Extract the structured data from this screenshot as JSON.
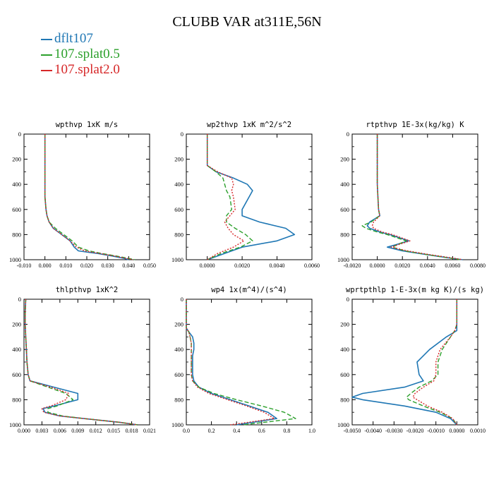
{
  "title": "CLUBB VAR at311E,56N",
  "legend": [
    {
      "label": "dflt107",
      "color": "#1f77b4"
    },
    {
      "label": "107.splat0.5",
      "color": "#2ca02c"
    },
    {
      "label": "107.splat2.0",
      "color": "#d62728"
    }
  ],
  "chart_data": [
    {
      "type": "line",
      "title": "wpthvp   1xK  m/s",
      "xlim": [
        -0.01,
        0.05
      ],
      "ylim": [
        1000,
        0
      ],
      "xticks": [
        "-0.010",
        "0.000",
        "0.010",
        "0.020",
        "0.030",
        "0.040",
        "0.050"
      ],
      "yticks": [
        "0",
        "200",
        "400",
        "600",
        "800",
        "1000"
      ],
      "y": [
        0,
        100,
        200,
        300,
        400,
        500,
        600,
        650,
        700,
        750,
        800,
        850,
        900,
        930,
        950,
        970,
        990,
        1000
      ],
      "series": [
        {
          "name": "dflt107",
          "values": [
            0.0,
            0.0,
            0.0,
            0.0,
            0.0,
            0.0,
            0.0005,
            0.001,
            0.002,
            0.004,
            0.008,
            0.012,
            0.014,
            0.016,
            0.025,
            0.032,
            0.038,
            0.04
          ]
        },
        {
          "name": "107.splat0.5",
          "values": [
            0.0,
            0.0,
            0.0,
            0.0,
            0.0,
            0.0,
            0.0005,
            0.001,
            0.002,
            0.005,
            0.009,
            0.013,
            0.016,
            0.021,
            0.027,
            0.034,
            0.04,
            0.043
          ]
        },
        {
          "name": "107.splat2.0",
          "values": [
            0.0,
            0.0,
            0.0,
            0.0,
            0.0,
            0.0,
            0.0005,
            0.001,
            0.002,
            0.004,
            0.008,
            0.012,
            0.015,
            0.019,
            0.026,
            0.033,
            0.039,
            0.042
          ]
        }
      ]
    },
    {
      "type": "line",
      "title": "wp2thvp   1xK  m^2/s^2",
      "xlim": [
        -0.0012,
        0.006
      ],
      "ylim": [
        1000,
        0
      ],
      "xticks": [
        "0.0000",
        "0.0020",
        "0.0040",
        "0.0060"
      ],
      "yticks": [
        "0",
        "200",
        "400",
        "600",
        "800",
        "1000"
      ],
      "y": [
        0,
        200,
        250,
        300,
        350,
        400,
        450,
        500,
        600,
        650,
        700,
        750,
        800,
        850,
        900,
        950,
        1000
      ],
      "series": [
        {
          "name": "dflt107",
          "values": [
            0.0,
            0.0,
            0.0,
            0.0005,
            0.0015,
            0.0023,
            0.0026,
            0.0024,
            0.002,
            0.002,
            0.003,
            0.0045,
            0.005,
            0.004,
            0.002,
            0.001,
            0.0
          ]
        },
        {
          "name": "107.splat0.5",
          "values": [
            0.0,
            0.0,
            0.0,
            0.0005,
            0.0009,
            0.001,
            0.0011,
            0.0013,
            0.0014,
            0.0011,
            0.0011,
            0.0016,
            0.0022,
            0.0026,
            0.0019,
            0.0008,
            0.0
          ]
        },
        {
          "name": "107.splat2.0",
          "values": [
            0.0,
            0.0,
            0.0,
            0.0006,
            0.0014,
            0.0015,
            0.0014,
            0.0015,
            0.0016,
            0.0013,
            0.001,
            0.0012,
            0.0015,
            0.0021,
            0.0015,
            0.0006,
            0.0
          ]
        }
      ]
    },
    {
      "type": "line",
      "title": "rtpthvp   1E-3x(kg/kg) K",
      "xlim": [
        -0.002,
        0.008
      ],
      "ylim": [
        1000,
        0
      ],
      "xticks": [
        "-0.0020",
        "0.0000",
        "0.0020",
        "0.0040",
        "0.0060",
        "0.0080"
      ],
      "yticks": [
        "0",
        "200",
        "400",
        "600",
        "800",
        "1000"
      ],
      "y": [
        0,
        200,
        400,
        600,
        650,
        700,
        730,
        750,
        780,
        800,
        850,
        880,
        900,
        930,
        960,
        990,
        1000
      ],
      "series": [
        {
          "name": "dflt107",
          "values": [
            0.0,
            0.0,
            0.0,
            0.0001,
            0.0002,
            -0.0006,
            -0.0008,
            -0.0006,
            0.0002,
            0.001,
            0.0025,
            0.0015,
            0.0008,
            0.002,
            0.004,
            0.006,
            0.0068
          ]
        },
        {
          "name": "107.splat0.5",
          "values": [
            0.0,
            0.0,
            0.0,
            0.0001,
            0.0002,
            -0.0005,
            -0.0012,
            -0.0009,
            0.0,
            0.0008,
            0.0023,
            0.0016,
            0.0012,
            0.0022,
            0.004,
            0.006,
            0.0066
          ]
        },
        {
          "name": "107.splat2.0",
          "values": [
            0.0,
            0.0,
            0.0,
            0.0001,
            0.0002,
            -0.0003,
            -0.0004,
            -0.0003,
            0.0004,
            0.0012,
            0.0026,
            0.0017,
            0.0011,
            0.0024,
            0.0042,
            0.0062,
            0.0068
          ]
        }
      ]
    },
    {
      "type": "line",
      "title": "thlpthvp   1xK^2",
      "xlim": [
        0.0,
        0.021
      ],
      "ylim": [
        1000,
        0
      ],
      "xticks": [
        "0.000",
        "0.003",
        "0.006",
        "0.009",
        "0.012",
        "0.015",
        "0.018",
        "0.021"
      ],
      "yticks": [
        "0",
        "200",
        "400",
        "600",
        "800",
        "1000"
      ],
      "y": [
        0,
        100,
        200,
        300,
        400,
        500,
        600,
        650,
        700,
        750,
        800,
        850,
        870,
        900,
        930,
        950,
        980,
        1000
      ],
      "series": [
        {
          "name": "dflt107",
          "values": [
            0.0003,
            0.0002,
            0.0002,
            0.0003,
            0.0004,
            0.0005,
            0.0007,
            0.001,
            0.005,
            0.009,
            0.009,
            0.005,
            0.0032,
            0.0035,
            0.006,
            0.01,
            0.016,
            0.019
          ]
        },
        {
          "name": "107.splat0.5",
          "values": [
            0.0003,
            0.0002,
            0.0002,
            0.0003,
            0.0004,
            0.0005,
            0.0007,
            0.001,
            0.004,
            0.007,
            0.0082,
            0.0055,
            0.004,
            0.004,
            0.0065,
            0.01,
            0.016,
            0.019
          ]
        },
        {
          "name": "107.splat2.0",
          "values": [
            0.0003,
            0.0002,
            0.0002,
            0.0003,
            0.0004,
            0.0005,
            0.0007,
            0.001,
            0.0045,
            0.0075,
            0.007,
            0.0045,
            0.003,
            0.0033,
            0.006,
            0.01,
            0.016,
            0.019
          ]
        }
      ]
    },
    {
      "type": "line",
      "title": "wp4   1x(m^4)/(s^4)",
      "xlim": [
        0.0,
        1.0
      ],
      "ylim": [
        1000,
        0
      ],
      "xticks": [
        "0.0",
        "0.2",
        "0.4",
        "0.6",
        "0.8",
        "1.0"
      ],
      "yticks": [
        "0",
        "200",
        "400",
        "600",
        "800",
        "1000"
      ],
      "y": [
        0,
        200,
        230,
        260,
        300,
        350,
        400,
        450,
        500,
        600,
        650,
        700,
        750,
        800,
        850,
        900,
        950,
        1000
      ],
      "series": [
        {
          "name": "dflt107",
          "values": [
            0.0,
            0.0,
            0.0,
            0.02,
            0.05,
            0.06,
            0.06,
            0.05,
            0.05,
            0.05,
            0.06,
            0.1,
            0.2,
            0.35,
            0.5,
            0.65,
            0.72,
            0.4
          ]
        },
        {
          "name": "107.splat0.5",
          "values": [
            0.0,
            0.0,
            0.0,
            0.02,
            0.03,
            0.04,
            0.04,
            0.04,
            0.04,
            0.04,
            0.05,
            0.1,
            0.22,
            0.4,
            0.6,
            0.78,
            0.87,
            0.45
          ]
        },
        {
          "name": "107.splat2.0",
          "values": [
            0.0,
            0.0,
            0.0,
            0.02,
            0.03,
            0.04,
            0.04,
            0.04,
            0.04,
            0.04,
            0.05,
            0.09,
            0.18,
            0.33,
            0.48,
            0.62,
            0.7,
            0.35
          ]
        }
      ]
    },
    {
      "type": "line",
      "title": "wprtpthlp   1-E-3x(m kg K)/(s kg)",
      "xlim": [
        -0.005,
        0.001
      ],
      "ylim": [
        1000,
        0
      ],
      "xticks": [
        "-0.0050",
        "-0.0040",
        "-0.0030",
        "-0.0020",
        "-0.0010",
        "0.0000",
        "0.0010"
      ],
      "yticks": [
        "0",
        "200",
        "400",
        "600",
        "800",
        "1000"
      ],
      "y": [
        0,
        100,
        200,
        250,
        300,
        400,
        500,
        600,
        650,
        700,
        750,
        780,
        800,
        850,
        900,
        950,
        1000
      ],
      "series": [
        {
          "name": "dflt107",
          "values": [
            0.0,
            0.0,
            0.0,
            0.0,
            -0.0005,
            -0.0013,
            -0.0019,
            -0.0018,
            -0.0016,
            -0.0025,
            -0.0045,
            -0.005,
            -0.0045,
            -0.0025,
            -0.001,
            -0.0003,
            0.0
          ]
        },
        {
          "name": "107.splat0.5",
          "values": [
            0.0,
            0.0,
            0.0,
            -0.0001,
            -0.0003,
            -0.0007,
            -0.0009,
            -0.0009,
            -0.0012,
            -0.0018,
            -0.0022,
            -0.0024,
            -0.0023,
            -0.0016,
            -0.0008,
            -0.0002,
            0.0
          ]
        },
        {
          "name": "107.splat2.0",
          "values": [
            0.0,
            0.0,
            0.0,
            -0.0001,
            -0.0003,
            -0.0008,
            -0.001,
            -0.001,
            -0.0011,
            -0.0016,
            -0.002,
            -0.0021,
            -0.0019,
            -0.0014,
            -0.0007,
            -0.0002,
            0.0
          ]
        }
      ]
    }
  ]
}
